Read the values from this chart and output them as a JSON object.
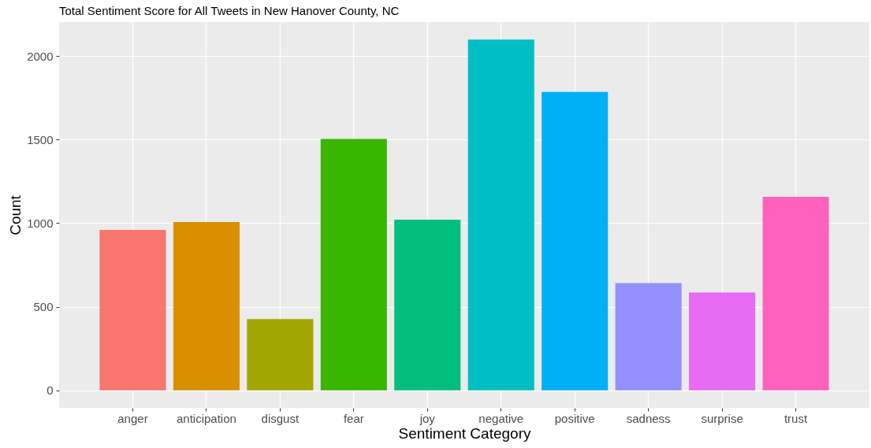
{
  "chart_data": {
    "type": "bar",
    "title": "Total Sentiment Score for All Tweets in New Hanover County, NC",
    "xlabel": "Sentiment Category",
    "ylabel": "Count",
    "categories": [
      "anger",
      "anticipation",
      "disgust",
      "fear",
      "joy",
      "negative",
      "positive",
      "sadness",
      "surprise",
      "trust"
    ],
    "values": [
      960,
      1007,
      426,
      1504,
      1021,
      2098,
      1785,
      642,
      585,
      1157
    ],
    "colors": [
      "#f8766d",
      "#d89000",
      "#a3a500",
      "#39b600",
      "#00bf7d",
      "#00bfc4",
      "#00b0f6",
      "#9590ff",
      "#e76bf3",
      "#ff62bc"
    ],
    "ylim": [
      -105,
      2203
    ],
    "yticks": [
      0,
      500,
      1000,
      1500,
      2000
    ],
    "grid": true,
    "legend": false
  }
}
